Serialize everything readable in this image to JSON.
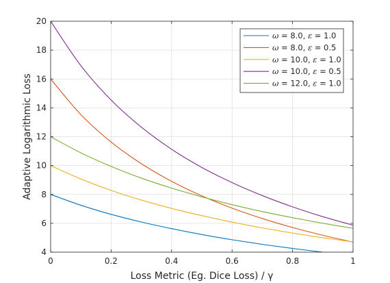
{
  "chart_data": {
    "type": "line",
    "xlabel": "Loss Metric (Eg. Dice Loss) / γ",
    "ylabel": "Adaptive Logarithmic Loss",
    "xlim": [
      0,
      1
    ],
    "ylim": [
      4,
      20
    ],
    "xticks": [
      0,
      0.2,
      0.4,
      0.6,
      0.8,
      1
    ],
    "yticks": [
      4,
      6,
      8,
      10,
      12,
      14,
      16,
      18,
      20
    ],
    "xtick_labels": [
      "0",
      "0.2",
      "0.4",
      "0.6",
      "0.8",
      "1"
    ],
    "ytick_labels": [
      "4",
      "6",
      "8",
      "10",
      "12",
      "14",
      "16",
      "18",
      "20"
    ],
    "grid": true,
    "legend_position": "top-right",
    "x": [
      0,
      0.1,
      0.2,
      0.3,
      0.4,
      0.5,
      0.6,
      0.7,
      0.8,
      0.9,
      1.0
    ],
    "series": [
      {
        "name": "ω = 8.0, ε = 1.0",
        "omega": "8.0",
        "epsilon": "1.0",
        "color": "#0072bd",
        "values": [
          8.0,
          7.25,
          6.62,
          6.09,
          5.63,
          5.22,
          4.86,
          4.54,
          4.26,
          4.0,
          3.78
        ]
      },
      {
        "name": "ω = 8.0, ε = 0.5",
        "omega": "8.0",
        "epsilon": "0.5",
        "color": "#d95319",
        "values": [
          16.0,
          13.53,
          11.63,
          10.13,
          8.91,
          7.9,
          7.05,
          6.33,
          5.71,
          5.17,
          4.7
        ]
      },
      {
        "name": "ω = 10.0, ε = 1.0",
        "omega": "10.0",
        "epsilon": "1.0",
        "color": "#edb120",
        "values": [
          10.0,
          9.07,
          8.28,
          7.61,
          7.03,
          6.53,
          6.08,
          5.68,
          5.32,
          5.0,
          4.71
        ]
      },
      {
        "name": "ω = 10.0, ε = 0.5",
        "omega": "10.0",
        "epsilon": "0.5",
        "color": "#7e2f8e",
        "values": [
          20.0,
          16.92,
          14.54,
          12.66,
          11.13,
          9.87,
          8.82,
          7.92,
          7.14,
          6.46,
          5.87
        ]
      },
      {
        "name": "ω = 12.0, ε = 1.0",
        "omega": "12.0",
        "epsilon": "1.0",
        "color": "#77ac30",
        "values": [
          12.0,
          10.88,
          9.94,
          9.13,
          8.44,
          7.83,
          7.29,
          6.81,
          6.39,
          6.0,
          5.65
        ]
      }
    ]
  }
}
